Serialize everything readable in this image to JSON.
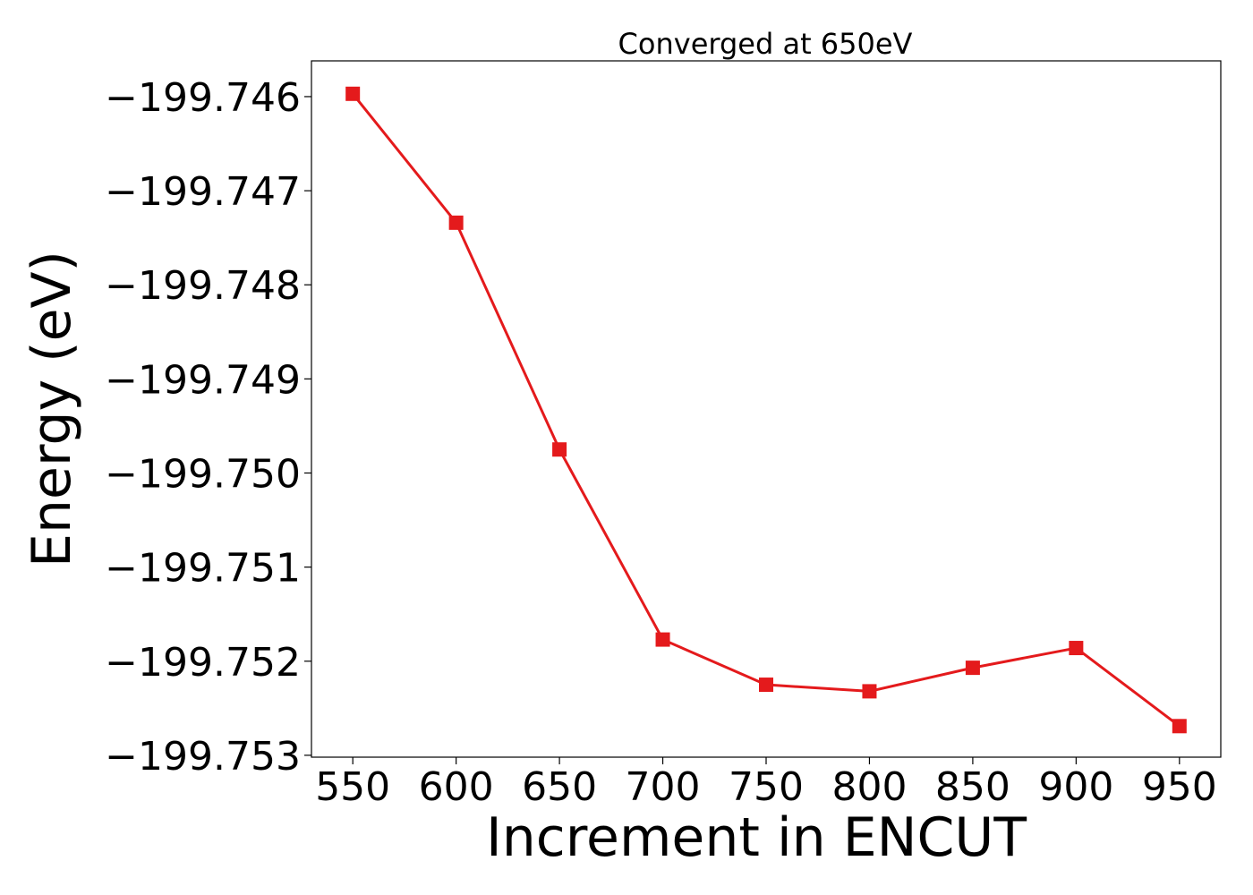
{
  "chart_data": {
    "type": "line",
    "title": "Converged at 650eV",
    "xlabel": "Increment in ENCUT",
    "ylabel": "Energy (eV)",
    "x": [
      550,
      600,
      650,
      700,
      750,
      800,
      850,
      900,
      950
    ],
    "series": [
      {
        "values": [
          -199.74597,
          -199.74734,
          -199.74975,
          -199.75177,
          -199.75225,
          -199.75232,
          -199.75207,
          -199.75186,
          -199.75269
        ],
        "color": "#e41a1c",
        "marker": "square"
      }
    ],
    "xlim": [
      530,
      970
    ],
    "ylim": [
      -199.75302,
      -199.74562
    ],
    "xticks": [
      550,
      600,
      650,
      700,
      750,
      800,
      850,
      900,
      950
    ],
    "xtick_labels": [
      "550",
      "600",
      "650",
      "700",
      "750",
      "800",
      "850",
      "900",
      "950"
    ],
    "yticks": [
      -199.746,
      -199.747,
      -199.748,
      -199.749,
      -199.75,
      -199.751,
      -199.752,
      -199.753
    ],
    "ytick_labels": [
      "−199.746",
      "−199.747",
      "−199.748",
      "−199.749",
      "−199.750",
      "−199.751",
      "−199.752",
      "−199.753"
    ],
    "grid": false,
    "legend": false
  }
}
